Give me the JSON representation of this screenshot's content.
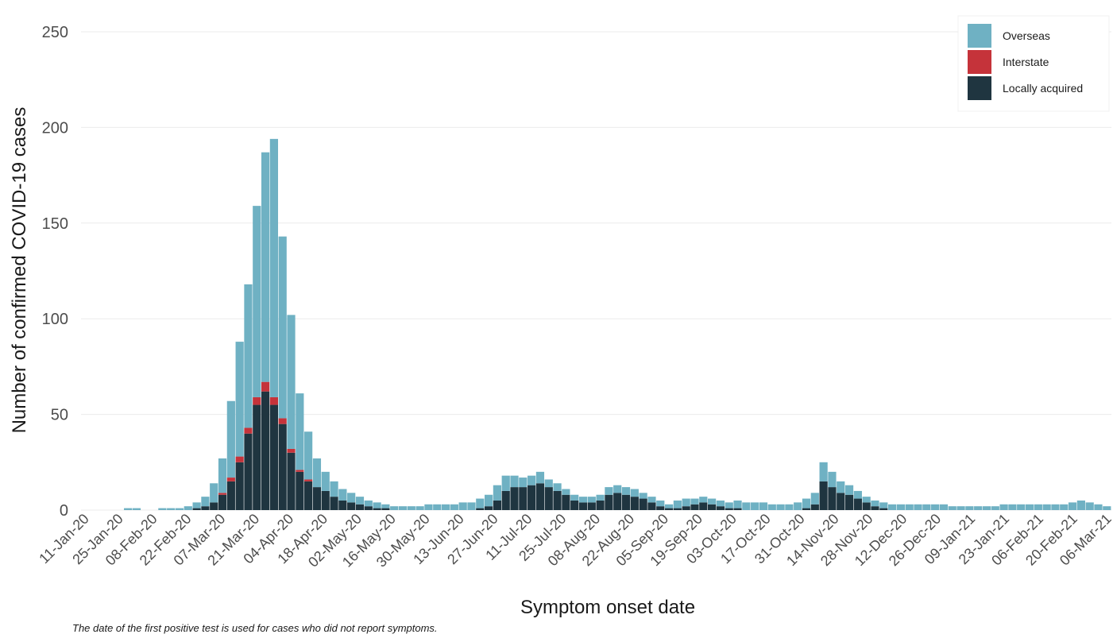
{
  "chart_data": {
    "type": "bar",
    "stacked": true,
    "xlabel": "Symptom onset date",
    "ylabel": "Number of confirmed COVID-19 cases",
    "ylim": [
      0,
      250
    ],
    "yticks": [
      0,
      50,
      100,
      150,
      200,
      250
    ],
    "grid": true,
    "legend_position": "top-right",
    "x_tick_labels": [
      "11-Jan-20",
      "25-Jan-20",
      "08-Feb-20",
      "22-Feb-20",
      "07-Mar-20",
      "21-Mar-20",
      "04-Apr-20",
      "18-Apr-20",
      "02-May-20",
      "16-May-20",
      "30-May-20",
      "13-Jun-20",
      "27-Jun-20",
      "11-Jul-20",
      "25-Jul-20",
      "08-Aug-20",
      "22-Aug-20",
      "05-Sep-20",
      "19-Sep-20",
      "03-Oct-20",
      "17-Oct-20",
      "31-Oct-20",
      "14-Nov-20",
      "28-Nov-20",
      "12-Dec-20",
      "26-Dec-20",
      "09-Jan-21",
      "23-Jan-21",
      "06-Feb-21",
      "20-Feb-21",
      "06-Mar-21"
    ],
    "x_start": "11-Jan-20",
    "x_end": "06-Mar-21",
    "series_weekly_note": "values are daily counts sampled per tick interval",
    "series": [
      {
        "name": "Overseas",
        "color": "#6fb1c3",
        "values": [
          0,
          0,
          0,
          0,
          0,
          1,
          1,
          0,
          0,
          1,
          1,
          1,
          2,
          3,
          5,
          10,
          18,
          40,
          60,
          75,
          100,
          120,
          135,
          95,
          70,
          40,
          25,
          15,
          10,
          8,
          6,
          5,
          4,
          3,
          3,
          2,
          2,
          2,
          2,
          2,
          3,
          3,
          3,
          3,
          4,
          4,
          5,
          6,
          8,
          8,
          6,
          5,
          5,
          6,
          4,
          4,
          3,
          3,
          3,
          3,
          3,
          4,
          4,
          4,
          4,
          3,
          3,
          3,
          2,
          4,
          4,
          3,
          3,
          3,
          3,
          3,
          4,
          4,
          4,
          4,
          3,
          3,
          3,
          4,
          5,
          6,
          10,
          8,
          6,
          5,
          4,
          3,
          3,
          3,
          3,
          3,
          3,
          3,
          3,
          3,
          3,
          2,
          2,
          2,
          2,
          2,
          2,
          3,
          3,
          3,
          3,
          3,
          3,
          3,
          3,
          4,
          5,
          4,
          3,
          2
        ]
      },
      {
        "name": "Interstate",
        "color": "#c5333a",
        "values": [
          0,
          0,
          0,
          0,
          0,
          0,
          0,
          0,
          0,
          0,
          0,
          0,
          0,
          0,
          0,
          0,
          1,
          2,
          3,
          3,
          4,
          5,
          4,
          3,
          2,
          1,
          1,
          0,
          0,
          0,
          0,
          0,
          0,
          0,
          0,
          0,
          0,
          0,
          0,
          0,
          0,
          0,
          0,
          0,
          0,
          0,
          0,
          0,
          0,
          0,
          0,
          0,
          0,
          0,
          0,
          0,
          0,
          0,
          0,
          0,
          0,
          0,
          0,
          0,
          0,
          0,
          0,
          0,
          0,
          0,
          0,
          0,
          0,
          0,
          0,
          0,
          0,
          0,
          0,
          0,
          0,
          0,
          0,
          0,
          0,
          0,
          0,
          0,
          0,
          0,
          0,
          0,
          0,
          0,
          0,
          0,
          0,
          0,
          0,
          0,
          0,
          0,
          0,
          0,
          0,
          0,
          0,
          0,
          0,
          0,
          0,
          0,
          0,
          0,
          0,
          0,
          0,
          0,
          0,
          0
        ]
      },
      {
        "name": "Locally acquired",
        "color": "#1f3540",
        "values": [
          0,
          0,
          0,
          0,
          0,
          0,
          0,
          0,
          0,
          0,
          0,
          0,
          0,
          1,
          2,
          4,
          8,
          15,
          25,
          40,
          55,
          62,
          55,
          45,
          30,
          20,
          15,
          12,
          10,
          7,
          5,
          4,
          3,
          2,
          1,
          1,
          0,
          0,
          0,
          0,
          0,
          0,
          0,
          0,
          0,
          0,
          1,
          2,
          5,
          10,
          12,
          12,
          13,
          14,
          12,
          10,
          8,
          5,
          4,
          4,
          5,
          8,
          9,
          8,
          7,
          6,
          4,
          2,
          1,
          1,
          2,
          3,
          4,
          3,
          2,
          1,
          1,
          0,
          0,
          0,
          0,
          0,
          0,
          0,
          1,
          3,
          15,
          12,
          9,
          8,
          6,
          4,
          2,
          1,
          0,
          0,
          0,
          0,
          0,
          0,
          0,
          0,
          0,
          0,
          0,
          0,
          0,
          0,
          0,
          0,
          0,
          0,
          0,
          0,
          0,
          0,
          0,
          0,
          0,
          0
        ]
      }
    ]
  },
  "footnote": "The date of the first positive test is used for cases who did not report symptoms."
}
